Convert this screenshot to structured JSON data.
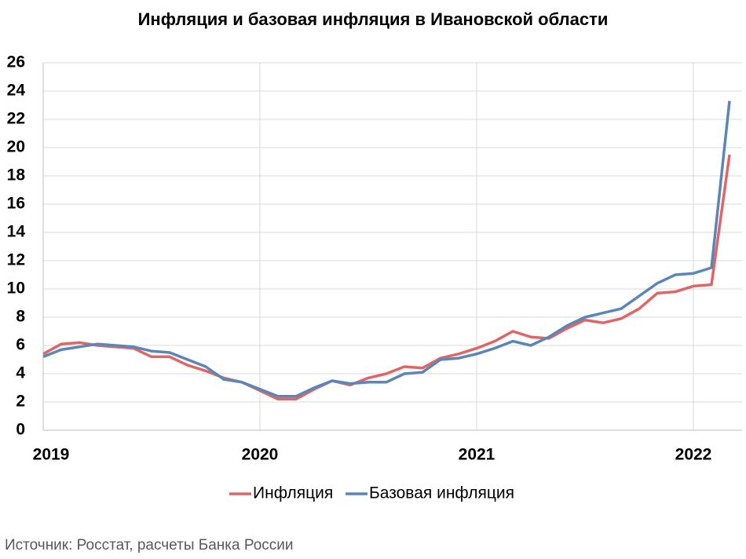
{
  "chart_data": {
    "type": "line",
    "title": "Инфляция и базовая инфляция в Ивановской области",
    "categories": [
      "2019",
      null,
      null,
      null,
      null,
      null,
      null,
      null,
      null,
      null,
      null,
      null,
      "2020",
      null,
      null,
      null,
      null,
      null,
      null,
      null,
      null,
      null,
      null,
      null,
      "2021",
      null,
      null,
      null,
      null,
      null,
      null,
      null,
      null,
      null,
      null,
      null,
      "2022",
      null,
      null
    ],
    "series": [
      {
        "name": "Инфляция",
        "color": "#e06666",
        "values": [
          5.4,
          6.1,
          6.2,
          6.0,
          5.9,
          5.8,
          5.2,
          5.2,
          4.6,
          4.2,
          3.7,
          3.4,
          2.8,
          2.2,
          2.2,
          2.9,
          3.5,
          3.2,
          3.7,
          4.0,
          4.5,
          4.4,
          5.1,
          5.4,
          5.8,
          6.3,
          7.0,
          6.6,
          6.5,
          7.2,
          7.8,
          7.6,
          7.9,
          8.6,
          9.7,
          9.8,
          10.2,
          10.3,
          19.5
        ]
      },
      {
        "name": "Базовая инфляция",
        "color": "#5b86b8",
        "values": [
          5.2,
          5.7,
          5.9,
          6.1,
          6.0,
          5.9,
          5.6,
          5.5,
          5.0,
          4.5,
          3.6,
          3.4,
          2.9,
          2.4,
          2.4,
          3.0,
          3.5,
          3.3,
          3.4,
          3.4,
          4.0,
          4.1,
          5.0,
          5.1,
          5.4,
          5.8,
          6.3,
          6.0,
          6.6,
          7.4,
          8.0,
          8.3,
          8.6,
          9.5,
          10.4,
          11.0,
          11.1,
          11.5,
          23.3
        ]
      }
    ],
    "ylim": [
      0,
      26
    ],
    "yticks": [
      0,
      2,
      4,
      6,
      8,
      10,
      12,
      14,
      16,
      18,
      20,
      22,
      24,
      26
    ],
    "grid": true,
    "legend": "bottom",
    "source": "Источник: Росстат, расчеты Банка России"
  }
}
